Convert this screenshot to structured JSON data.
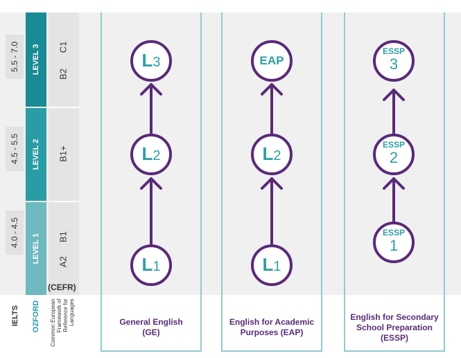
{
  "ielts": {
    "header": "IELTS",
    "bands": [
      "5.5 - 7.0",
      "4.5 - 5.5",
      "4.0 - 4.5"
    ]
  },
  "ozford": {
    "header": "OZFORD",
    "levels": [
      "LEVEL 3",
      "LEVEL 2",
      "LEVEL 1"
    ]
  },
  "cefr": {
    "abbr": "(CEFR)",
    "name_lines": [
      "Common European",
      "Framework of",
      "Reference for",
      "Languages"
    ],
    "level3": [
      "C1",
      "B2"
    ],
    "level2": [
      "B1+"
    ],
    "level1": [
      "B1",
      "A2"
    ]
  },
  "tracks": [
    {
      "label_lines": [
        "General English",
        "(GE)"
      ],
      "nodes": [
        {
          "main": "L",
          "sub": "3"
        },
        {
          "main": "L",
          "sub": "2"
        },
        {
          "main": "L",
          "sub": "1"
        }
      ]
    },
    {
      "label_lines": [
        "English for Academic",
        "Purposes (EAP)"
      ],
      "nodes": [
        {
          "main": "EAP"
        },
        {
          "main": "L",
          "sub": "2"
        },
        {
          "main": "L",
          "sub": "1"
        }
      ]
    },
    {
      "label_lines": [
        "English for Secondary",
        "School Preparation",
        "(ESSP)"
      ],
      "nodes": [
        {
          "top": "ESSP",
          "num": "3"
        },
        {
          "top": "ESSP",
          "num": "2"
        },
        {
          "top": "ESSP",
          "num": "1"
        }
      ]
    }
  ],
  "colors": {
    "teal_dark": "#1a8a94",
    "teal_mid": "#2a9ca5",
    "teal_light": "#6fb9bf",
    "purple": "#5a2a78",
    "node_text": "#2f9ea5",
    "track_border": "#8ecbd0"
  }
}
